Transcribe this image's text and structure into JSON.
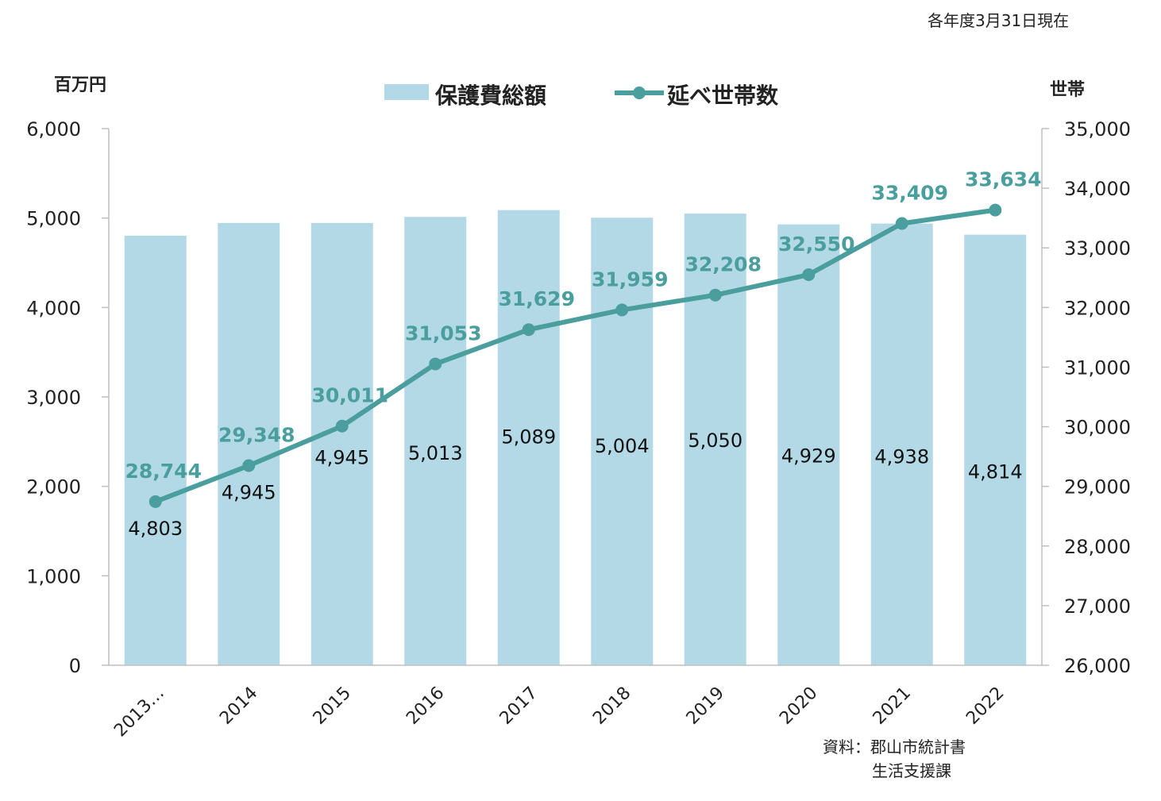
{
  "note": "各年度3月31日現在",
  "source": {
    "line1": "資料：郡山市統計書",
    "line2": "生活支援課"
  },
  "chart_data": {
    "type": "bar",
    "categories": [
      "2013…",
      "2014",
      "2015",
      "2016",
      "2017",
      "2018",
      "2019",
      "2020",
      "2021",
      "2022"
    ],
    "series": [
      {
        "name": "保護費総額",
        "type": "bar",
        "axis": "left",
        "values": [
          4803,
          4945,
          4945,
          5013,
          5089,
          5004,
          5050,
          4929,
          4938,
          4814
        ],
        "color": "#b3d8e6"
      },
      {
        "name": "延べ世帯数",
        "type": "line",
        "axis": "right",
        "values": [
          28744,
          29348,
          30011,
          31053,
          31629,
          31959,
          32208,
          32550,
          33409,
          33634
        ],
        "color": "#4a9e9e"
      }
    ],
    "y_left": {
      "label": "百万円",
      "range": [
        0,
        6000
      ],
      "ticks": [
        0,
        1000,
        2000,
        3000,
        4000,
        5000,
        6000
      ]
    },
    "y_right": {
      "label": "世帯",
      "range": [
        26000,
        35000
      ],
      "ticks": [
        26000,
        27000,
        28000,
        29000,
        30000,
        31000,
        32000,
        33000,
        34000,
        35000
      ]
    },
    "legend": "top-center",
    "grid": false
  }
}
